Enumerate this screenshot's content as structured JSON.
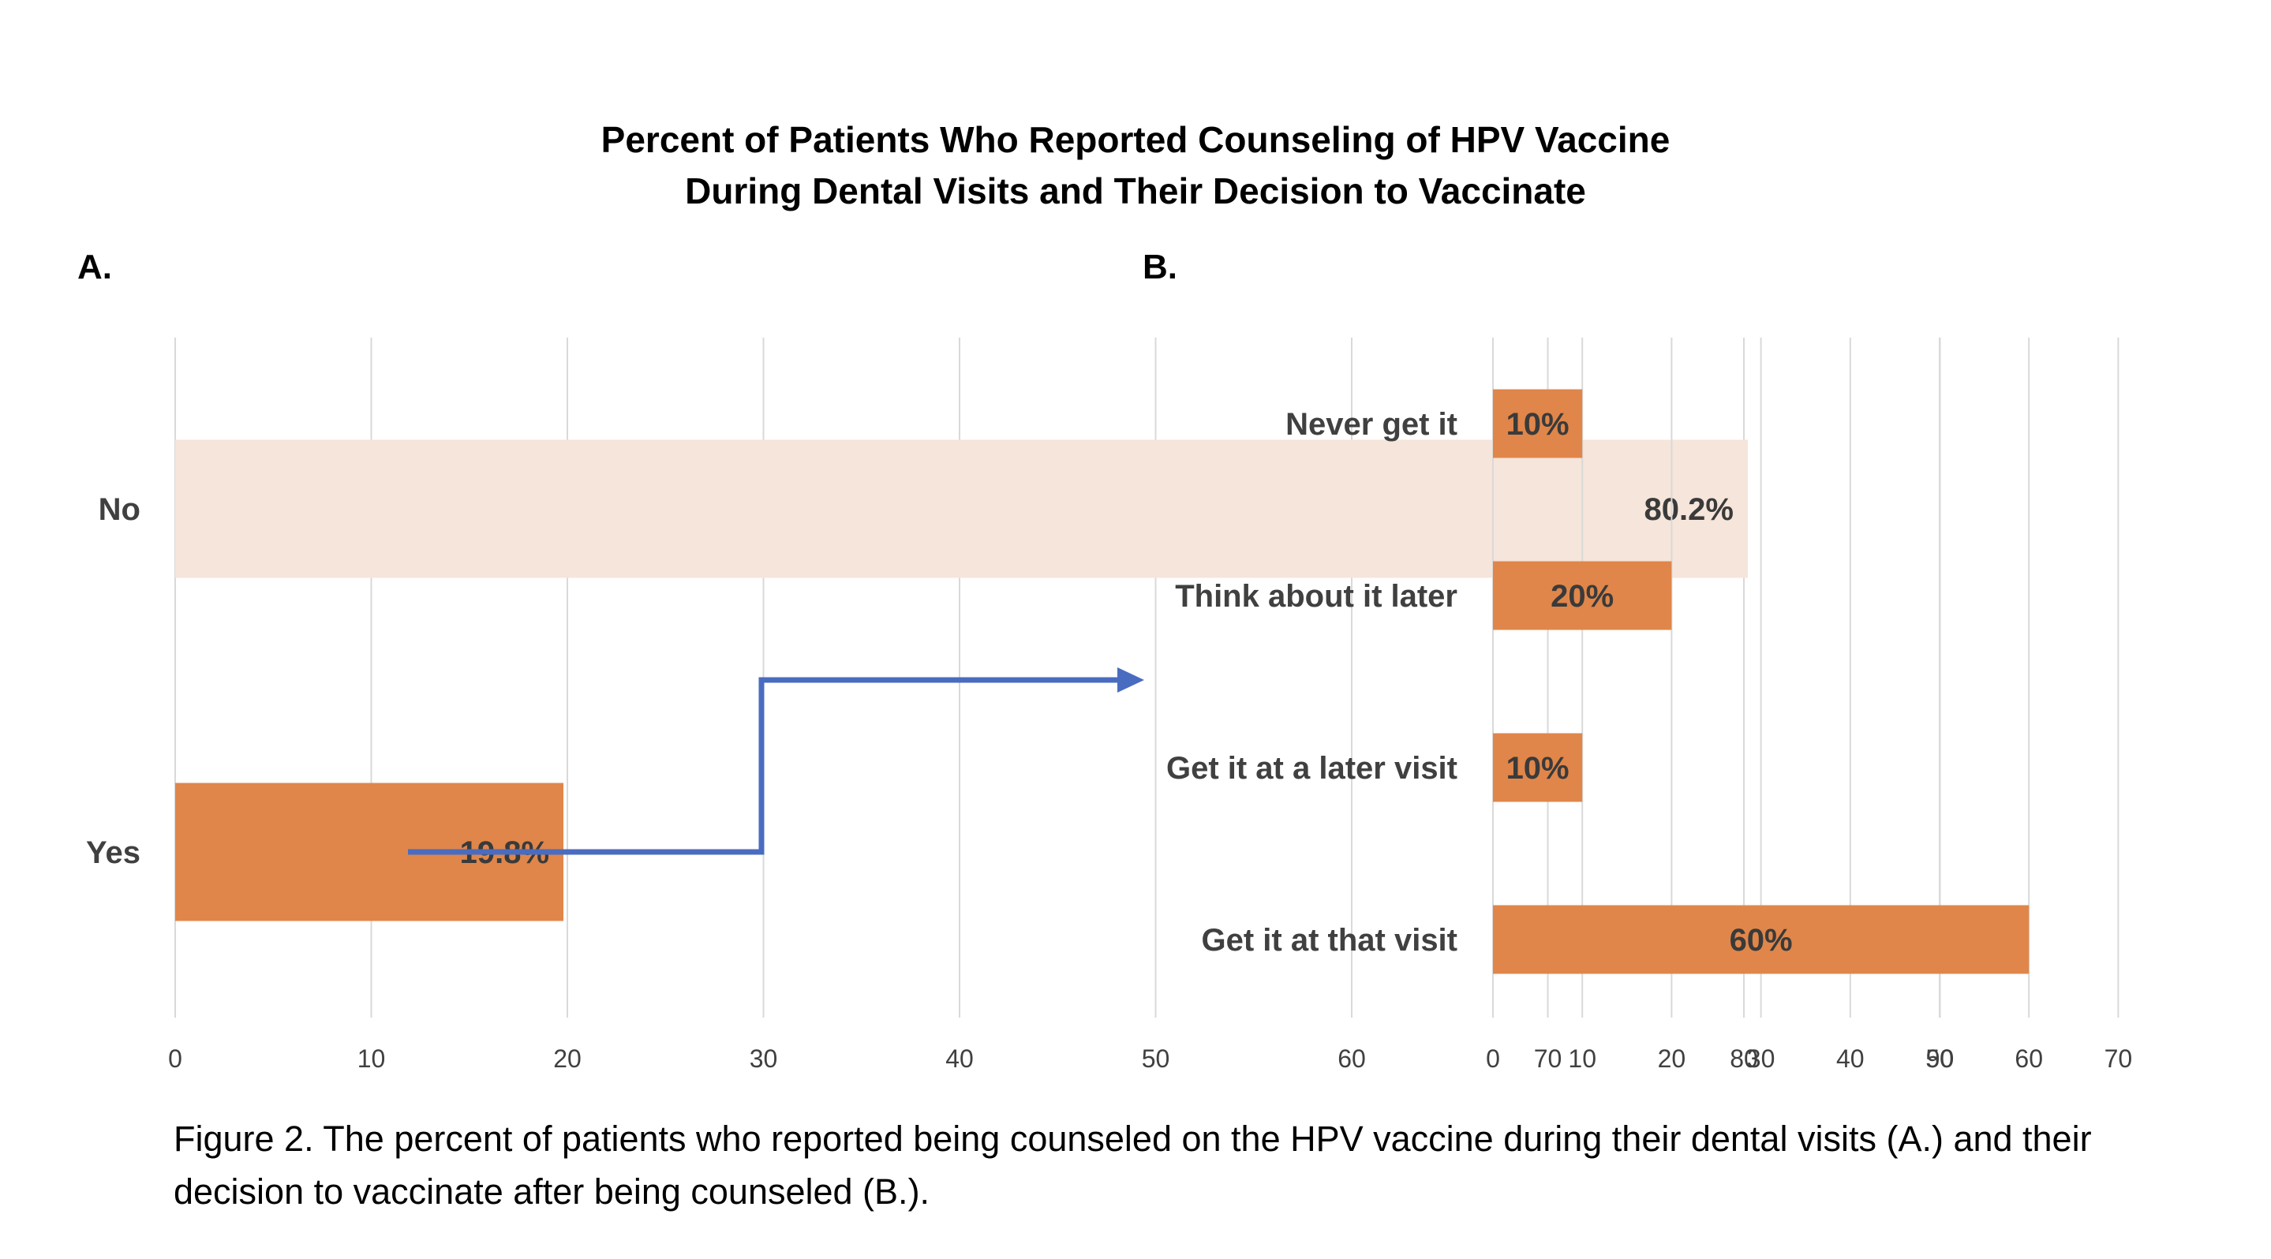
{
  "title_lines": [
    "Percent of Patients Who Reported Counseling of HPV Vaccine",
    "During Dental Visits and Their Decision to Vaccinate"
  ],
  "panel_labels": {
    "a": "A.",
    "b": "B."
  },
  "caption": "Figure 2. The percent of patients who reported being counseled on the HPV vaccine during their dental visits (A.) and their decision to vaccinate after being counseled (B.).",
  "colors": {
    "bar_orange": "#E0864A",
    "bar_light": "#F6E5DA",
    "arrow": "#4A6CC0",
    "grid": "#D9D9D9",
    "text_gray": "#404040"
  },
  "chart_data": [
    {
      "type": "bar",
      "orientation": "horizontal",
      "panel": "A.",
      "categories": [
        "No",
        "Yes"
      ],
      "values": [
        80.2,
        19.8
      ],
      "data_labels": [
        "80.2%",
        "19.8%"
      ],
      "xticks": [
        "0",
        "10",
        "20",
        "30",
        "40",
        "50",
        "60",
        "70",
        "80",
        "90"
      ],
      "xlim": [
        0,
        90
      ],
      "grid": true,
      "bar_colors": [
        "#F6E5DA",
        "#E0864A"
      ]
    },
    {
      "type": "bar",
      "orientation": "horizontal",
      "panel": "B.",
      "categories": [
        "Never get it",
        "Think about it later",
        "Get it at a later visit",
        "Get it at that visit"
      ],
      "values": [
        10,
        20,
        10,
        60
      ],
      "data_labels": [
        "10%",
        "20%",
        "10%",
        "60%"
      ],
      "xticks": [
        "0",
        "10",
        "20",
        "30",
        "40",
        "50",
        "60",
        "70"
      ],
      "xlim": [
        0,
        70
      ],
      "grid": true,
      "bar_colors": [
        "#E0864A",
        "#E0864A",
        "#E0864A",
        "#E0864A"
      ]
    }
  ]
}
